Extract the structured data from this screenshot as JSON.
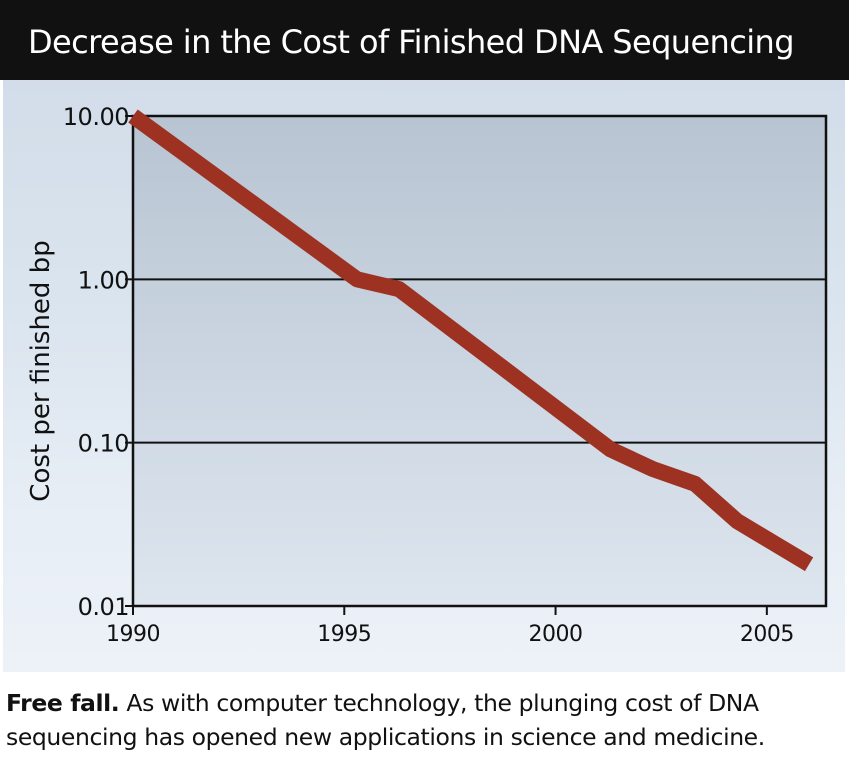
{
  "header": {
    "title": "Decrease in the Cost of Finished DNA Sequencing"
  },
  "caption": {
    "lead": "Free fall.",
    "text": "As with computer technology, the plunging cost of DNA sequencing has opened new applications in science and medicine."
  },
  "colors": {
    "title_bar": "#111111",
    "line": "#9e3222",
    "plot_fill": "#c3cfdc"
  },
  "chart_data": {
    "type": "line",
    "title": "Decrease in the Cost of Finished DNA Sequencing",
    "xlabel": "",
    "ylabel": "Cost per finished bp",
    "y_scale": "log",
    "xlim": [
      1990,
      2006.4
    ],
    "ylim": [
      0.01,
      10
    ],
    "grid": "horizontal",
    "x_ticks": [
      1990,
      1995,
      2000,
      2005
    ],
    "x_tick_labels": [
      "1990",
      "1995",
      "2000",
      "2005"
    ],
    "y_ticks": [
      10,
      1,
      0.1,
      0.01
    ],
    "y_tick_labels": [
      "10.00",
      "1.00",
      "0.10",
      "0.01"
    ],
    "series": [
      {
        "x": [
          1990,
          1995.3,
          1996.3,
          2001.3,
          2002.3,
          2003.3,
          2004.3,
          2006
        ],
        "y": [
          10,
          1.0,
          0.87,
          0.091,
          0.069,
          0.056,
          0.033,
          0.018
        ]
      }
    ]
  }
}
